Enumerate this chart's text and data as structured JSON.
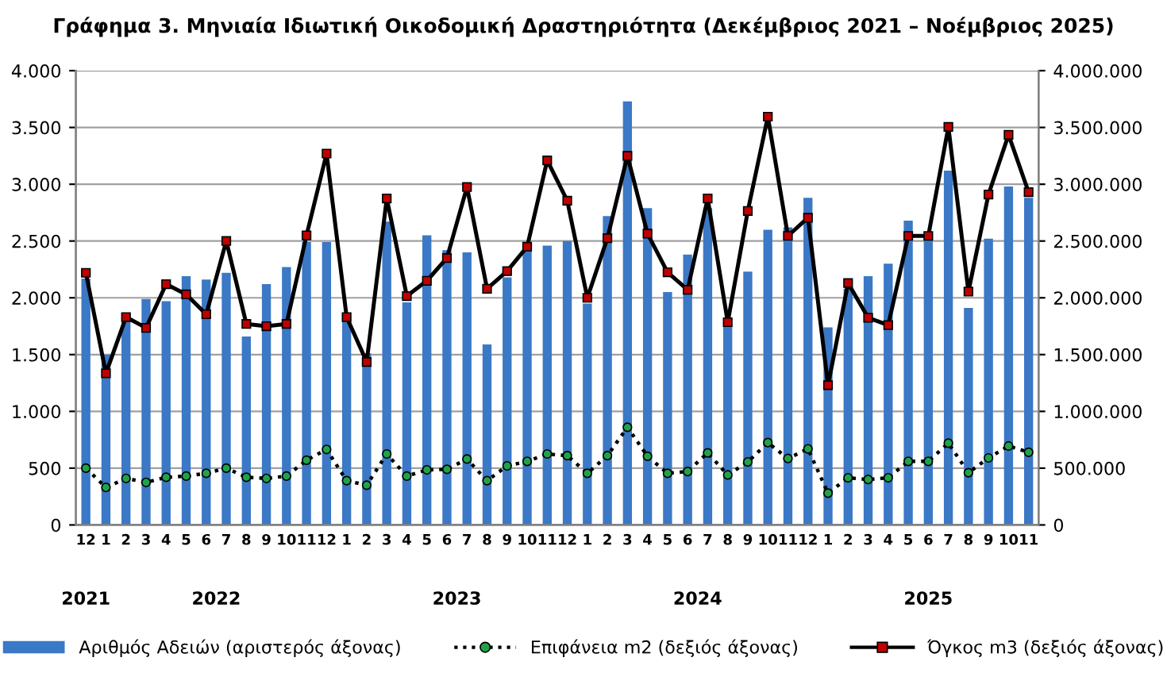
{
  "chart_data": {
    "type": "bar",
    "title": "Γράφημα 3. Μηνιαία Ιδιωτική Οικοδομική Δραστηριότητα (Δεκέμβριος 2021 – Νοέμβριος 2025)",
    "categories": [
      "12",
      "1",
      "2",
      "3",
      "4",
      "5",
      "6",
      "7",
      "8",
      "9",
      "10",
      "11",
      "12",
      "1",
      "2",
      "3",
      "4",
      "5",
      "6",
      "7",
      "8",
      "9",
      "10",
      "11",
      "12",
      "1",
      "2",
      "3",
      "4",
      "5",
      "6",
      "7",
      "8",
      "9",
      "10",
      "11",
      "12",
      "1",
      "2",
      "3",
      "4",
      "5",
      "6",
      "7",
      "8",
      "9",
      "10",
      "11"
    ],
    "annotations": [
      "2021",
      "2022",
      "2023",
      "2024",
      "2025"
    ],
    "series": [
      {
        "name": "Αριθμός Αδειών (αριστερός άξονας)",
        "color": "#3b78c6",
        "values": [
          2170,
          1500,
          1820,
          1990,
          1970,
          2190,
          2160,
          2220,
          1660,
          2120,
          2270,
          2490,
          2490,
          1820,
          1510,
          2670,
          1960,
          2550,
          2420,
          2400,
          1590,
          2180,
          2430,
          2460,
          2500,
          1950,
          2720,
          3730,
          2790,
          2050,
          2380,
          2790,
          1760,
          2230,
          2600,
          2620,
          2880,
          1740,
          2080,
          2190,
          2300,
          2680,
          2530,
          3120,
          1910,
          2520,
          2980,
          2880
        ]
      },
      {
        "name": "Επιφάνεια m2 (δεξιός άξονας)",
        "type": "line",
        "axis": "y2",
        "color": "#1fa34a",
        "marker": "circle",
        "line_style": "dotted",
        "values": [
          500000,
          330000,
          410000,
          375000,
          420000,
          430000,
          455000,
          500000,
          420000,
          410000,
          430000,
          570000,
          665000,
          390000,
          350000,
          625000,
          430000,
          485000,
          490000,
          580000,
          390000,
          520000,
          560000,
          625000,
          610000,
          455000,
          610000,
          860000,
          605000,
          455000,
          470000,
          635000,
          440000,
          555000,
          725000,
          585000,
          670000,
          280000,
          415000,
          400000,
          415000,
          560000,
          560000,
          720000,
          460000,
          590000,
          695000,
          640000
        ]
      },
      {
        "name": "Όγκος m3 (δεξιός άξονας)",
        "type": "line",
        "axis": "y2",
        "color": "#c00000",
        "marker": "square",
        "line_style": "solid",
        "values": [
          2220000,
          1335000,
          1830000,
          1735000,
          2120000,
          2030000,
          1855000,
          2500000,
          1770000,
          1750000,
          1770000,
          2550000,
          3270000,
          1830000,
          1435000,
          2875000,
          2015000,
          2150000,
          2350000,
          2975000,
          2080000,
          2235000,
          2450000,
          3210000,
          2855000,
          2000000,
          2525000,
          3250000,
          2565000,
          2225000,
          2070000,
          2875000,
          1785000,
          2765000,
          3595000,
          2545000,
          2705000,
          1230000,
          2130000,
          1825000,
          1760000,
          2545000,
          2545000,
          3505000,
          2055000,
          2910000,
          3435000,
          2930000
        ]
      }
    ],
    "ylim": [
      0,
      4000
    ],
    "yticks": [
      0,
      {
        "value": 500,
        "label": "500"
      },
      {
        "value": 1000,
        "label": "1.000"
      },
      {
        "value": 1500,
        "label": "1.500"
      },
      {
        "value": 2000,
        "label": "2.000"
      },
      {
        "value": 2500,
        "label": "2.500"
      },
      {
        "value": 3000,
        "label": "3.000"
      },
      {
        "value": 3500,
        "label": "3.500"
      },
      {
        "value": 4000,
        "label": "4.000"
      }
    ],
    "y2lim": [
      0,
      4000000
    ],
    "y2ticks": [
      0,
      {
        "value": 500000,
        "label": "500.000"
      },
      {
        "value": 1000000,
        "label": "1.000.000"
      },
      {
        "value": 1500000,
        "label": "1.500.000"
      },
      {
        "value": 2000000,
        "label": "2.000.000"
      },
      {
        "value": 2500000,
        "label": "2.500.000"
      },
      {
        "value": 3000000,
        "label": "3.000.000"
      },
      {
        "value": 3500000,
        "label": "3.500.000"
      },
      {
        "value": 4000000,
        "label": "4.000.000"
      }
    ],
    "grid": "y",
    "legend": "bottom"
  }
}
